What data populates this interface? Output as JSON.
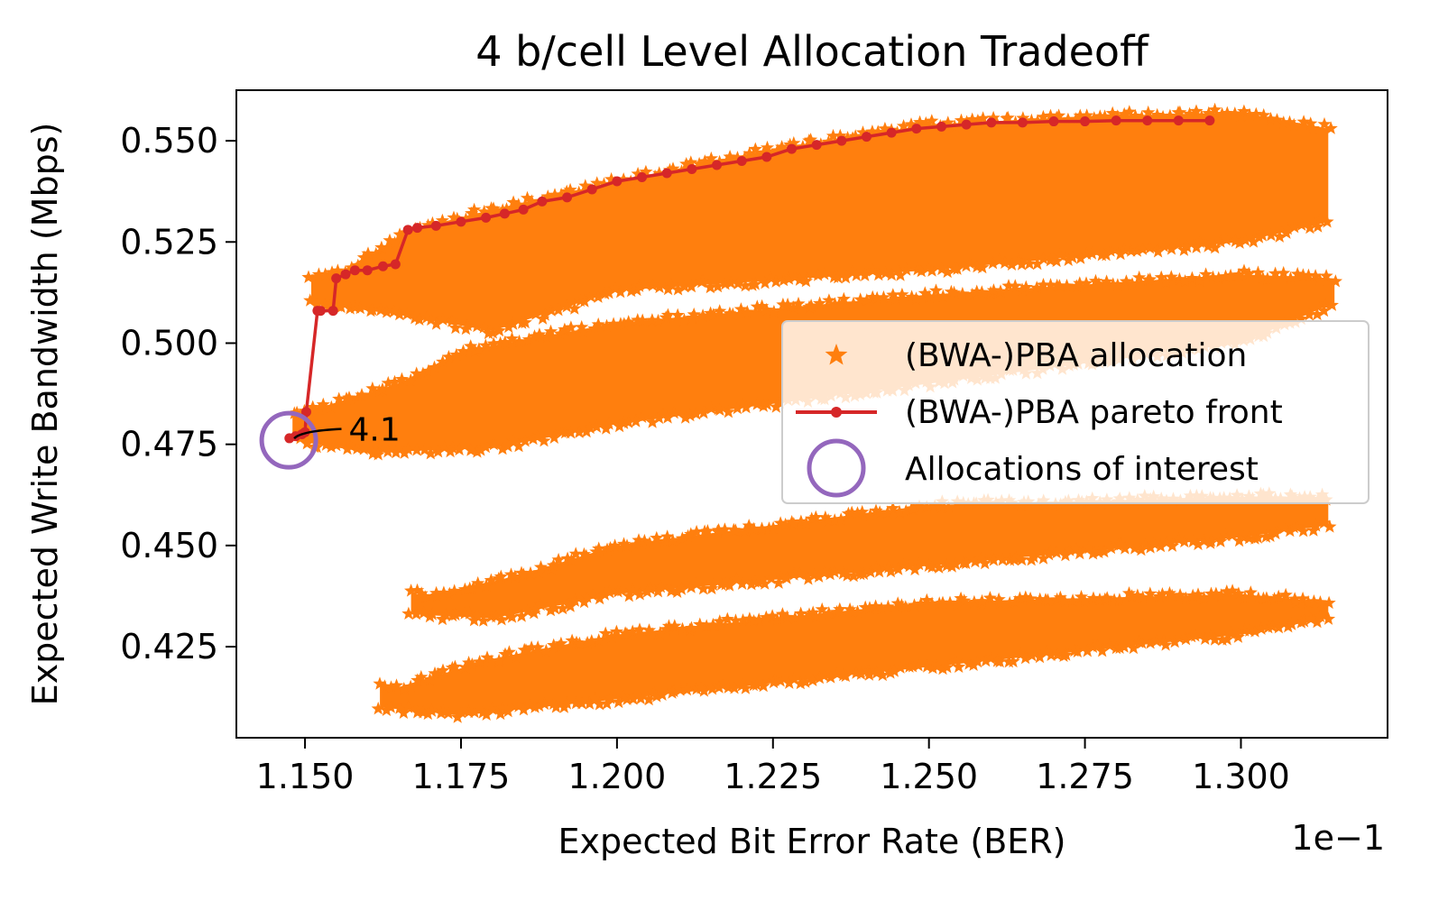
{
  "chart_data": {
    "type": "scatter",
    "title": "4 b/cell Level Allocation Tradeoff",
    "xlabel": "Expected Bit Error Rate (BER)",
    "ylabel": "Expected Write Bandwidth (Mbps)",
    "x_offset_label": "1e−1",
    "xlim": [
      1.139,
      1.3235
    ],
    "ylim": [
      0.4025,
      0.5625
    ],
    "x_ticks": [
      1.15,
      1.175,
      1.2,
      1.225,
      1.25,
      1.275,
      1.3
    ],
    "x_tick_labels": [
      "1.150",
      "1.175",
      "1.200",
      "1.225",
      "1.250",
      "1.275",
      "1.300"
    ],
    "y_ticks": [
      0.425,
      0.45,
      0.475,
      0.5,
      0.525,
      0.55
    ],
    "y_tick_labels": [
      "0.425",
      "0.450",
      "0.475",
      "0.500",
      "0.525",
      "0.550"
    ],
    "grid": false,
    "legend_position": "center-right",
    "series": [
      {
        "name": "(BWA-)PBA allocation",
        "kind": "scatter-cloud",
        "marker": "star",
        "color": "#ff7f0e",
        "bands": [
          {
            "x_start": 1.151,
            "x_end": 1.314,
            "y_lower": [
              [
                1.151,
                0.51
              ],
              [
                1.165,
                0.507
              ],
              [
                1.18,
                0.503
              ],
              [
                1.2,
                0.513
              ],
              [
                1.25,
                0.518
              ],
              [
                1.3,
                0.525
              ],
              [
                1.314,
                0.53
              ]
            ],
            "y_upper": [
              [
                1.155,
                0.517
              ],
              [
                1.167,
                0.528
              ],
              [
                1.18,
                0.533
              ],
              [
                1.2,
                0.54
              ],
              [
                1.225,
                0.548
              ],
              [
                1.25,
                0.554
              ],
              [
                1.275,
                0.556
              ],
              [
                1.3,
                0.557
              ],
              [
                1.314,
                0.553
              ]
            ]
          },
          {
            "x_start": 1.148,
            "x_end": 1.315,
            "y_lower": [
              [
                1.148,
                0.476
              ],
              [
                1.16,
                0.473
              ],
              [
                1.18,
                0.474
              ],
              [
                1.2,
                0.48
              ],
              [
                1.25,
                0.49
              ],
              [
                1.3,
                0.5
              ],
              [
                1.315,
                0.51
              ]
            ],
            "y_upper": [
              [
                1.15,
                0.483
              ],
              [
                1.165,
                0.49
              ],
              [
                1.175,
                0.498
              ],
              [
                1.2,
                0.505
              ],
              [
                1.25,
                0.512
              ],
              [
                1.3,
                0.517
              ],
              [
                1.315,
                0.516
              ]
            ]
          },
          {
            "x_start": 1.167,
            "x_end": 1.314,
            "y_lower": [
              [
                1.167,
                0.433
              ],
              [
                1.18,
                0.432
              ],
              [
                1.2,
                0.438
              ],
              [
                1.25,
                0.445
              ],
              [
                1.3,
                0.452
              ],
              [
                1.314,
                0.455
              ]
            ],
            "y_upper": [
              [
                1.172,
                0.438
              ],
              [
                1.185,
                0.443
              ],
              [
                1.2,
                0.45
              ],
              [
                1.25,
                0.46
              ],
              [
                1.3,
                0.462
              ],
              [
                1.314,
                0.462
              ]
            ]
          },
          {
            "x_start": 1.162,
            "x_end": 1.314,
            "y_lower": [
              [
                1.162,
                0.41
              ],
              [
                1.175,
                0.408
              ],
              [
                1.2,
                0.412
              ],
              [
                1.25,
                0.42
              ],
              [
                1.3,
                0.428
              ],
              [
                1.314,
                0.432
              ]
            ],
            "y_upper": [
              [
                1.165,
                0.415
              ],
              [
                1.18,
                0.422
              ],
              [
                1.2,
                0.428
              ],
              [
                1.25,
                0.436
              ],
              [
                1.3,
                0.438
              ],
              [
                1.314,
                0.436
              ]
            ]
          }
        ]
      },
      {
        "name": "(BWA-)PBA pareto front",
        "kind": "line-marker",
        "color": "#d62728",
        "x": [
          1.1475,
          1.1485,
          1.1495,
          1.15,
          1.1502,
          1.152,
          1.1525,
          1.1545,
          1.155,
          1.1565,
          1.158,
          1.16,
          1.1625,
          1.1645,
          1.1665,
          1.168,
          1.171,
          1.175,
          1.179,
          1.182,
          1.185,
          1.188,
          1.192,
          1.196,
          1.2,
          1.204,
          1.208,
          1.212,
          1.216,
          1.22,
          1.224,
          1.228,
          1.232,
          1.236,
          1.24,
          1.244,
          1.248,
          1.252,
          1.256,
          1.26,
          1.265,
          1.27,
          1.275,
          1.28,
          1.285,
          1.29,
          1.295
        ],
        "y": [
          0.4765,
          0.477,
          0.4775,
          0.478,
          0.483,
          0.508,
          0.508,
          0.508,
          0.516,
          0.517,
          0.518,
          0.518,
          0.519,
          0.5195,
          0.528,
          0.5285,
          0.529,
          0.53,
          0.531,
          0.532,
          0.533,
          0.535,
          0.536,
          0.538,
          0.54,
          0.541,
          0.542,
          0.543,
          0.544,
          0.545,
          0.546,
          0.548,
          0.549,
          0.55,
          0.551,
          0.552,
          0.553,
          0.5535,
          0.554,
          0.5545,
          0.5545,
          0.5548,
          0.5548,
          0.555,
          0.555,
          0.555,
          0.555
        ]
      },
      {
        "name": "Allocations of interest",
        "kind": "open-circle",
        "color": "#9467bd",
        "x": [
          1.1474
        ],
        "y": [
          0.476
        ]
      }
    ],
    "annotations": [
      {
        "text": "4.1",
        "x": 1.1474,
        "y": 0.476,
        "text_x": 1.157,
        "text_y": 0.477
      }
    ]
  }
}
